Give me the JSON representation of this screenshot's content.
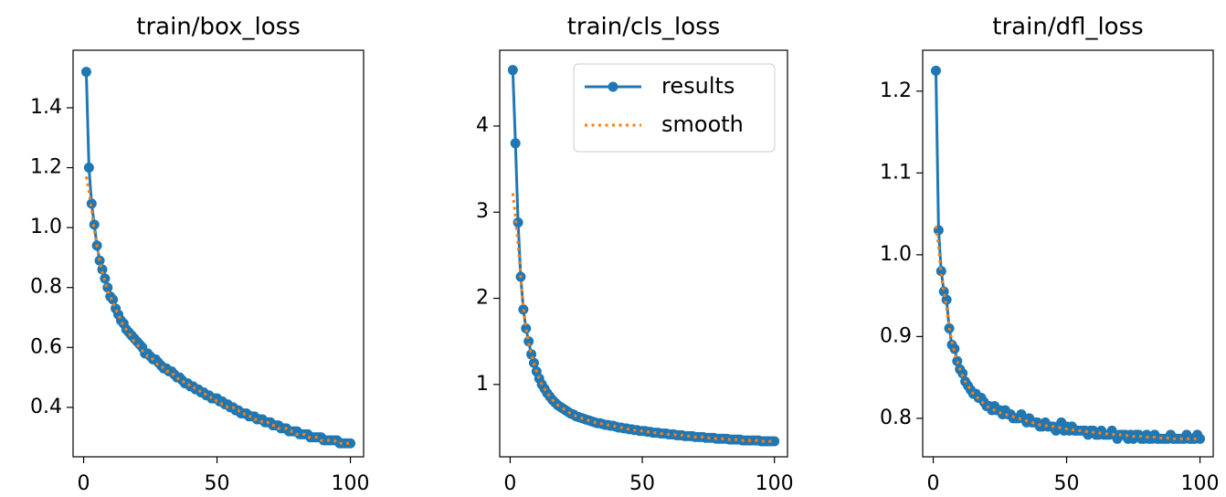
{
  "chart_data": [
    {
      "type": "line",
      "title": "train/box_loss",
      "x": [
        1,
        2,
        3,
        4,
        5,
        6,
        7,
        8,
        9,
        10,
        11,
        12,
        13,
        14,
        15,
        16,
        17,
        18,
        19,
        20,
        21,
        22,
        23,
        24,
        25,
        26,
        27,
        28,
        29,
        30,
        31,
        32,
        33,
        34,
        35,
        36,
        37,
        38,
        39,
        40,
        41,
        42,
        43,
        44,
        45,
        46,
        47,
        48,
        49,
        50,
        51,
        52,
        53,
        54,
        55,
        56,
        57,
        58,
        59,
        60,
        61,
        62,
        63,
        64,
        65,
        66,
        67,
        68,
        69,
        70,
        71,
        72,
        73,
        74,
        75,
        76,
        77,
        78,
        79,
        80,
        81,
        82,
        83,
        84,
        85,
        86,
        87,
        88,
        89,
        90,
        91,
        92,
        93,
        94,
        95,
        96,
        97,
        98,
        99,
        100
      ],
      "series": [
        {
          "name": "results",
          "color": "#1f77b4",
          "linestyle": "solid",
          "marker": "o",
          "values": [
            1.52,
            1.2,
            1.08,
            1.01,
            0.94,
            0.89,
            0.86,
            0.83,
            0.8,
            0.77,
            0.76,
            0.73,
            0.71,
            0.69,
            0.68,
            0.66,
            0.65,
            0.64,
            0.63,
            0.62,
            0.61,
            0.6,
            0.58,
            0.58,
            0.57,
            0.56,
            0.56,
            0.55,
            0.54,
            0.53,
            0.53,
            0.52,
            0.52,
            0.51,
            0.5,
            0.5,
            0.49,
            0.48,
            0.48,
            0.47,
            0.47,
            0.46,
            0.46,
            0.45,
            0.45,
            0.44,
            0.44,
            0.43,
            0.43,
            0.43,
            0.42,
            0.42,
            0.41,
            0.41,
            0.4,
            0.4,
            0.39,
            0.39,
            0.38,
            0.38,
            0.38,
            0.37,
            0.37,
            0.37,
            0.36,
            0.36,
            0.36,
            0.35,
            0.35,
            0.35,
            0.34,
            0.34,
            0.34,
            0.33,
            0.33,
            0.33,
            0.32,
            0.32,
            0.32,
            0.32,
            0.31,
            0.31,
            0.31,
            0.31,
            0.3,
            0.3,
            0.3,
            0.3,
            0.3,
            0.29,
            0.29,
            0.29,
            0.29,
            0.29,
            0.29,
            0.28,
            0.28,
            0.28,
            0.28,
            0.28
          ]
        },
        {
          "name": "smooth",
          "color": "#ff7f0e",
          "linestyle": "dotted",
          "values": [
            1.17,
            1.12,
            1.06,
            0.99,
            0.94,
            0.89,
            0.85,
            0.82,
            0.79,
            0.77,
            0.75,
            0.73,
            0.71,
            0.69,
            0.67,
            0.66,
            0.65,
            0.63,
            0.62,
            0.61,
            0.6,
            0.59,
            0.58,
            0.57,
            0.57,
            0.56,
            0.55,
            0.54,
            0.54,
            0.53,
            0.52,
            0.52,
            0.51,
            0.51,
            0.5,
            0.49,
            0.49,
            0.48,
            0.48,
            0.47,
            0.47,
            0.46,
            0.46,
            0.45,
            0.45,
            0.44,
            0.44,
            0.43,
            0.43,
            0.42,
            0.42,
            0.41,
            0.41,
            0.4,
            0.4,
            0.4,
            0.39,
            0.39,
            0.38,
            0.38,
            0.37,
            0.37,
            0.37,
            0.36,
            0.36,
            0.36,
            0.35,
            0.35,
            0.35,
            0.34,
            0.34,
            0.34,
            0.33,
            0.33,
            0.33,
            0.33,
            0.32,
            0.32,
            0.32,
            0.31,
            0.31,
            0.31,
            0.31,
            0.3,
            0.3,
            0.3,
            0.3,
            0.3,
            0.29,
            0.29,
            0.29,
            0.29,
            0.29,
            0.29,
            0.28,
            0.28,
            0.28,
            0.28,
            0.28,
            0.28
          ]
        }
      ],
      "xlim": [
        -3.95,
        104.95
      ],
      "xticks": [
        0,
        50,
        100
      ],
      "ylim": [
        0.235,
        1.592
      ],
      "yticks": [
        {
          "value": 0.4,
          "label": "0.4"
        },
        {
          "value": 0.6,
          "label": "0.6"
        },
        {
          "value": 0.8,
          "label": "0.8"
        },
        {
          "value": 1.0,
          "label": "1.0"
        },
        {
          "value": 1.2,
          "label": "1.2"
        },
        {
          "value": 1.4,
          "label": "1.4"
        }
      ]
    },
    {
      "type": "line",
      "title": "train/cls_loss",
      "legend": "upper right",
      "x": [
        1,
        2,
        3,
        4,
        5,
        6,
        7,
        8,
        9,
        10,
        11,
        12,
        13,
        14,
        15,
        16,
        17,
        18,
        19,
        20,
        21,
        22,
        23,
        24,
        25,
        26,
        27,
        28,
        29,
        30,
        31,
        32,
        33,
        34,
        35,
        36,
        37,
        38,
        39,
        40,
        41,
        42,
        43,
        44,
        45,
        46,
        47,
        48,
        49,
        50,
        51,
        52,
        53,
        54,
        55,
        56,
        57,
        58,
        59,
        60,
        61,
        62,
        63,
        64,
        65,
        66,
        67,
        68,
        69,
        70,
        71,
        72,
        73,
        74,
        75,
        76,
        77,
        78,
        79,
        80,
        81,
        82,
        83,
        84,
        85,
        86,
        87,
        88,
        89,
        90,
        91,
        92,
        93,
        94,
        95,
        96,
        97,
        98,
        99,
        100
      ],
      "series": [
        {
          "name": "results",
          "color": "#1f77b4",
          "linestyle": "solid",
          "marker": "o",
          "values": [
            4.65,
            3.8,
            2.88,
            2.25,
            1.87,
            1.65,
            1.5,
            1.35,
            1.25,
            1.15,
            1.07,
            1.0,
            0.95,
            0.9,
            0.86,
            0.82,
            0.79,
            0.76,
            0.74,
            0.72,
            0.7,
            0.68,
            0.66,
            0.65,
            0.63,
            0.62,
            0.61,
            0.6,
            0.59,
            0.58,
            0.57,
            0.56,
            0.55,
            0.55,
            0.54,
            0.53,
            0.53,
            0.52,
            0.52,
            0.51,
            0.5,
            0.5,
            0.49,
            0.49,
            0.48,
            0.48,
            0.47,
            0.47,
            0.46,
            0.46,
            0.46,
            0.45,
            0.45,
            0.44,
            0.44,
            0.44,
            0.43,
            0.43,
            0.43,
            0.42,
            0.42,
            0.42,
            0.41,
            0.41,
            0.41,
            0.4,
            0.4,
            0.4,
            0.4,
            0.39,
            0.39,
            0.39,
            0.39,
            0.38,
            0.38,
            0.38,
            0.38,
            0.37,
            0.37,
            0.37,
            0.37,
            0.37,
            0.36,
            0.36,
            0.36,
            0.36,
            0.36,
            0.35,
            0.35,
            0.35,
            0.35,
            0.35,
            0.35,
            0.35,
            0.34,
            0.34,
            0.34,
            0.34,
            0.34,
            0.34
          ]
        },
        {
          "name": "smooth",
          "color": "#ff7f0e",
          "linestyle": "dotted",
          "values": [
            3.22,
            2.95,
            2.62,
            2.25,
            1.9,
            1.65,
            1.48,
            1.35,
            1.24,
            1.15,
            1.07,
            1.0,
            0.95,
            0.9,
            0.86,
            0.82,
            0.79,
            0.76,
            0.74,
            0.72,
            0.7,
            0.68,
            0.66,
            0.65,
            0.63,
            0.62,
            0.61,
            0.6,
            0.59,
            0.58,
            0.57,
            0.56,
            0.55,
            0.55,
            0.54,
            0.53,
            0.53,
            0.52,
            0.52,
            0.51,
            0.5,
            0.5,
            0.49,
            0.49,
            0.48,
            0.48,
            0.47,
            0.47,
            0.46,
            0.46,
            0.46,
            0.45,
            0.45,
            0.44,
            0.44,
            0.44,
            0.43,
            0.43,
            0.43,
            0.42,
            0.42,
            0.42,
            0.41,
            0.41,
            0.41,
            0.4,
            0.4,
            0.4,
            0.4,
            0.39,
            0.39,
            0.39,
            0.39,
            0.38,
            0.38,
            0.38,
            0.38,
            0.37,
            0.37,
            0.37,
            0.37,
            0.37,
            0.36,
            0.36,
            0.36,
            0.36,
            0.36,
            0.35,
            0.35,
            0.35,
            0.35,
            0.35,
            0.35,
            0.35,
            0.34,
            0.34,
            0.34,
            0.34,
            0.34,
            0.34
          ]
        }
      ],
      "xlim": [
        -3.95,
        104.95
      ],
      "xticks": [
        0,
        50,
        100
      ],
      "ylim": [
        0.16,
        4.88
      ],
      "yticks": [
        1,
        2,
        3,
        4
      ]
    },
    {
      "type": "line",
      "title": "train/dfl_loss",
      "x": [
        1,
        2,
        3,
        4,
        5,
        6,
        7,
        8,
        9,
        10,
        11,
        12,
        13,
        14,
        15,
        16,
        17,
        18,
        19,
        20,
        21,
        22,
        23,
        24,
        25,
        26,
        27,
        28,
        29,
        30,
        31,
        32,
        33,
        34,
        35,
        36,
        37,
        38,
        39,
        40,
        41,
        42,
        43,
        44,
        45,
        46,
        47,
        48,
        49,
        50,
        51,
        52,
        53,
        54,
        55,
        56,
        57,
        58,
        59,
        60,
        61,
        62,
        63,
        64,
        65,
        66,
        67,
        68,
        69,
        70,
        71,
        72,
        73,
        74,
        75,
        76,
        77,
        78,
        79,
        80,
        81,
        82,
        83,
        84,
        85,
        86,
        87,
        88,
        89,
        90,
        91,
        92,
        93,
        94,
        95,
        96,
        97,
        98,
        99,
        100
      ],
      "series": [
        {
          "name": "results",
          "color": "#1f77b4",
          "linestyle": "solid",
          "marker": "o",
          "values": [
            1.225,
            1.03,
            0.98,
            0.955,
            0.945,
            0.91,
            0.89,
            0.885,
            0.87,
            0.86,
            0.855,
            0.845,
            0.84,
            0.835,
            0.83,
            0.83,
            0.825,
            0.825,
            0.82,
            0.815,
            0.815,
            0.81,
            0.815,
            0.81,
            0.81,
            0.805,
            0.81,
            0.805,
            0.805,
            0.8,
            0.8,
            0.8,
            0.805,
            0.8,
            0.795,
            0.8,
            0.795,
            0.795,
            0.795,
            0.79,
            0.79,
            0.795,
            0.79,
            0.79,
            0.79,
            0.785,
            0.79,
            0.795,
            0.785,
            0.79,
            0.785,
            0.79,
            0.785,
            0.785,
            0.785,
            0.785,
            0.785,
            0.78,
            0.785,
            0.785,
            0.78,
            0.78,
            0.785,
            0.78,
            0.78,
            0.78,
            0.785,
            0.78,
            0.775,
            0.78,
            0.78,
            0.78,
            0.775,
            0.78,
            0.775,
            0.78,
            0.78,
            0.775,
            0.775,
            0.78,
            0.775,
            0.775,
            0.78,
            0.775,
            0.775,
            0.775,
            0.775,
            0.775,
            0.78,
            0.775,
            0.775,
            0.775,
            0.775,
            0.775,
            0.78,
            0.775,
            0.775,
            0.775,
            0.78,
            0.775
          ]
        },
        {
          "name": "smooth",
          "color": "#ff7f0e",
          "linestyle": "dotted",
          "values": [
            1.035,
            1.01,
            0.975,
            0.955,
            0.935,
            0.91,
            0.895,
            0.88,
            0.87,
            0.86,
            0.852,
            0.845,
            0.84,
            0.835,
            0.83,
            0.827,
            0.824,
            0.821,
            0.818,
            0.815,
            0.813,
            0.811,
            0.81,
            0.809,
            0.807,
            0.806,
            0.805,
            0.804,
            0.803,
            0.802,
            0.801,
            0.8,
            0.799,
            0.798,
            0.797,
            0.796,
            0.795,
            0.794,
            0.793,
            0.792,
            0.792,
            0.791,
            0.791,
            0.79,
            0.79,
            0.789,
            0.789,
            0.788,
            0.788,
            0.787,
            0.787,
            0.786,
            0.786,
            0.785,
            0.785,
            0.785,
            0.784,
            0.784,
            0.784,
            0.783,
            0.783,
            0.782,
            0.782,
            0.782,
            0.781,
            0.781,
            0.781,
            0.78,
            0.78,
            0.78,
            0.779,
            0.779,
            0.779,
            0.779,
            0.778,
            0.778,
            0.778,
            0.778,
            0.777,
            0.777,
            0.777,
            0.777,
            0.777,
            0.776,
            0.776,
            0.776,
            0.776,
            0.776,
            0.776,
            0.775,
            0.775,
            0.775,
            0.775,
            0.775,
            0.775,
            0.775,
            0.775,
            0.775,
            0.775,
            0.775
          ]
        }
      ],
      "xlim": [
        -3.95,
        104.95
      ],
      "xticks": [
        0,
        50,
        100
      ],
      "ylim": [
        0.753,
        1.25
      ],
      "yticks": [
        {
          "value": 0.8,
          "label": "0.8"
        },
        {
          "value": 0.9,
          "label": "0.9"
        },
        {
          "value": 1.0,
          "label": "1.0"
        },
        {
          "value": 1.1,
          "label": "1.1"
        },
        {
          "value": 1.2,
          "label": "1.2"
        }
      ]
    }
  ]
}
